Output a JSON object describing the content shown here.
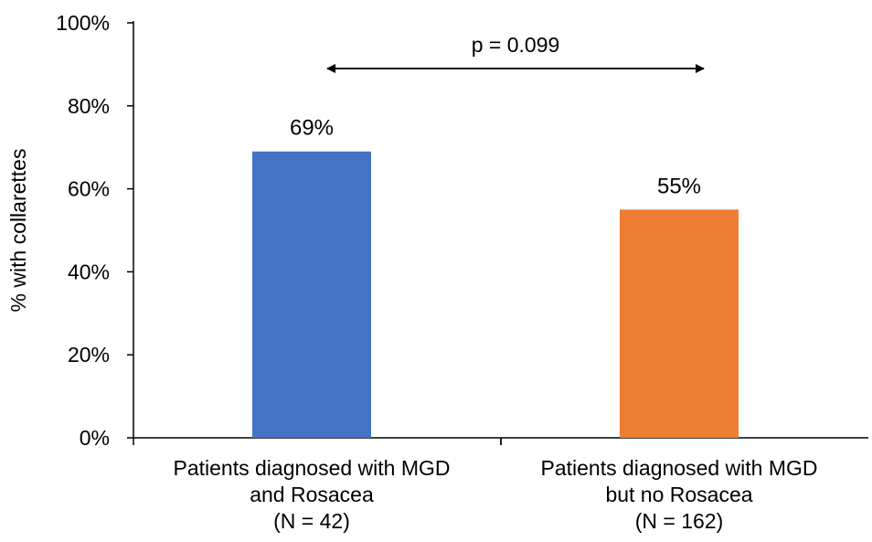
{
  "chart_data": {
    "type": "bar",
    "ylabel": "% with collarettes",
    "ylim": [
      0,
      100
    ],
    "yticks": [
      "0%",
      "20%",
      "40%",
      "60%",
      "80%",
      "100%"
    ],
    "categories": [
      [
        "Patients diagnosed with MGD",
        "and Rosacea",
        "(N = 42)"
      ],
      [
        "Patients diagnosed with MGD",
        "but no Rosacea",
        "(N = 162)"
      ]
    ],
    "values": [
      69,
      55
    ],
    "data_labels": [
      "69%",
      "55%"
    ],
    "colors": [
      "#4472C4",
      "#ED7D31"
    ],
    "grid": false,
    "annotation": {
      "text": "p = 0.099",
      "type": "double-arrow",
      "between": [
        0,
        1
      ],
      "y": 89
    }
  }
}
